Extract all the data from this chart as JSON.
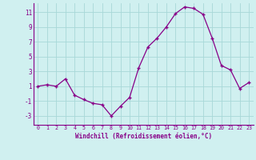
{
  "x": [
    0,
    1,
    2,
    3,
    4,
    5,
    6,
    7,
    8,
    9,
    10,
    11,
    12,
    13,
    14,
    15,
    16,
    17,
    18,
    19,
    20,
    21,
    22,
    23
  ],
  "y": [
    1.0,
    1.2,
    1.0,
    2.0,
    -0.2,
    -0.8,
    -1.3,
    -1.5,
    -3.0,
    -1.7,
    -0.5,
    3.5,
    6.3,
    7.5,
    9.0,
    10.8,
    11.7,
    11.5,
    10.7,
    7.5,
    3.8,
    3.2,
    0.7,
    1.5
  ],
  "line_color": "#880088",
  "bg_color": "#d0f0f0",
  "grid_color": "#a8d8d8",
  "xlabel": "Windchill (Refroidissement éolien,°C)",
  "ylim": [
    -4.2,
    12.2
  ],
  "xlim": [
    -0.5,
    23.5
  ],
  "yticks": [
    -3,
    -1,
    1,
    3,
    5,
    7,
    9,
    11
  ],
  "xticks": [
    0,
    1,
    2,
    3,
    4,
    5,
    6,
    7,
    8,
    9,
    10,
    11,
    12,
    13,
    14,
    15,
    16,
    17,
    18,
    19,
    20,
    21,
    22,
    23
  ],
  "axis_color": "#880088",
  "font": "monospace"
}
